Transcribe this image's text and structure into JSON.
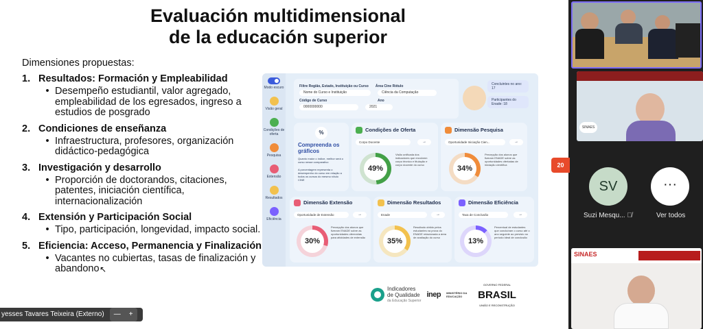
{
  "slide": {
    "title_line1": "Evaluación multidimensional",
    "title_line2": "de la educación superior",
    "dimensions_heading": "Dimensiones propuestas:",
    "sections": [
      {
        "num": "1.",
        "title": "Resultados: Formación y Empleabilidad",
        "bullets": [
          "Desempeño estudiantil, valor agregado, empleabilidad de los egresados, ingreso a estudios de posgrado"
        ]
      },
      {
        "num": "2.",
        "title": "Condiciones de enseñanza",
        "bullets": [
          "Infraestructura, profesores, organización didáctico-pedagógica"
        ]
      },
      {
        "num": "3.",
        "title": "Investigación y desarrollo",
        "bullets": [
          "Proporción de doctorandos, citaciones, patentes, iniciación científica, internacionalización"
        ]
      },
      {
        "num": "4.",
        "title": "Extensión y Participación Social",
        "bullets": [
          "Tipo, participación, longevidad, impacto social."
        ]
      },
      {
        "num": "5.",
        "title": "Eficiencia: Acceso, Permanencia y Finalización",
        "bullets": [
          "Vacantes no cubiertas, tasas de finalización y abandono"
        ]
      }
    ],
    "page_number": "20"
  },
  "dashboard": {
    "nav": [
      {
        "label": "Modo escuro",
        "color": "#3b5bdb"
      },
      {
        "label": "Visão geral",
        "color": "#f2c14e"
      },
      {
        "label": "Condições de oferta",
        "color": "#4caf50"
      },
      {
        "label": "Pesquisa",
        "color": "#f08c3a"
      },
      {
        "label": "Extensão",
        "color": "#e85d75"
      },
      {
        "label": "Resultados",
        "color": "#f2c14e"
      },
      {
        "label": "Eficiência",
        "color": "#7b61ff"
      }
    ],
    "filter": {
      "label1": "Filtre Região, Estado, Instituição ou Curso",
      "label2": "Área Cine Rótulo",
      "sel1": "Nome do Curso e Instituição",
      "sel2": "Ciência da Computação",
      "label3": "Código de Curso",
      "label4": "Ano",
      "sel3": "0000000000",
      "sel4": "2021"
    },
    "concluintes": "Concluintes no ano: 17",
    "participantes": "Participantes do Enade: 18",
    "compare_title": "Compreenda os gráficos",
    "compare_text": "Quanto maior o índice, melhor será o curso nesse comparativo",
    "compare_text2": "A porcentagem representa o desempenho do curso em relação a todos os cursos do mesmo rótulo CINE",
    "cards": [
      {
        "title": "Condições de Oferta",
        "button": "Corpo Docente",
        "value": "49%",
        "color": "#43a047",
        "desc": "Visão unificada dos indicadores que envolvem corpo técnico e titulação e corpo docente do curso"
      },
      {
        "title": "Dimensão Pesquisa",
        "button": "Oportunidade Iniciação Cien...",
        "value": "34%",
        "color": "#f08c3a",
        "desc": "Percepção dos alunos que fizeram ENADE sobre as oportunidades ofertadas de iniciação científica"
      },
      {
        "title": "Dimensão Extensão",
        "button": "Oportunidade de Extensão",
        "value": "30%",
        "color": "#e85d75",
        "desc": "Percepção dos alunos que fizeram ENADE sobre as oportunidades oferecidas para atividades de extensão"
      },
      {
        "title": "Dimensão Resultados",
        "button": "Enade",
        "value": "35%",
        "color": "#f2c14e",
        "desc": "Resultado obtido pelos estudantes na prova do ENADE relacionada a área de avaliação do curso"
      },
      {
        "title": "Dimensão Eficiência",
        "button": "Taxa de Conclusão",
        "value": "13%",
        "color": "#7b61ff",
        "desc": "Percentual de estudantes que concluíram o curso até o ano seguinte ao previsto no período ideal de conclusão"
      }
    ]
  },
  "logos": {
    "iq_line1": "Indicadores",
    "iq_line2": "de Qualidade",
    "iq_line3": "da Educação Superior",
    "inep": "inep",
    "ministry": "MINISTÉRIO DA EDUCAÇÃO",
    "gov": "GOVERNO FEDERAL",
    "brasil": "BRASIL",
    "brasil_sub": "UNIÃO E RECONSTRUÇÃO"
  },
  "presenter": {
    "name": "yesses Tavares Teixeira (Externo)",
    "zoom_out": "—",
    "zoom_in": "+"
  },
  "participants": {
    "sv_initials": "SV",
    "sv_name": "Suzi Mesqu...",
    "more": "···",
    "see_all": "Ver todos",
    "tile2_caption": "SINAES",
    "tile3_caption": "SINAES"
  }
}
